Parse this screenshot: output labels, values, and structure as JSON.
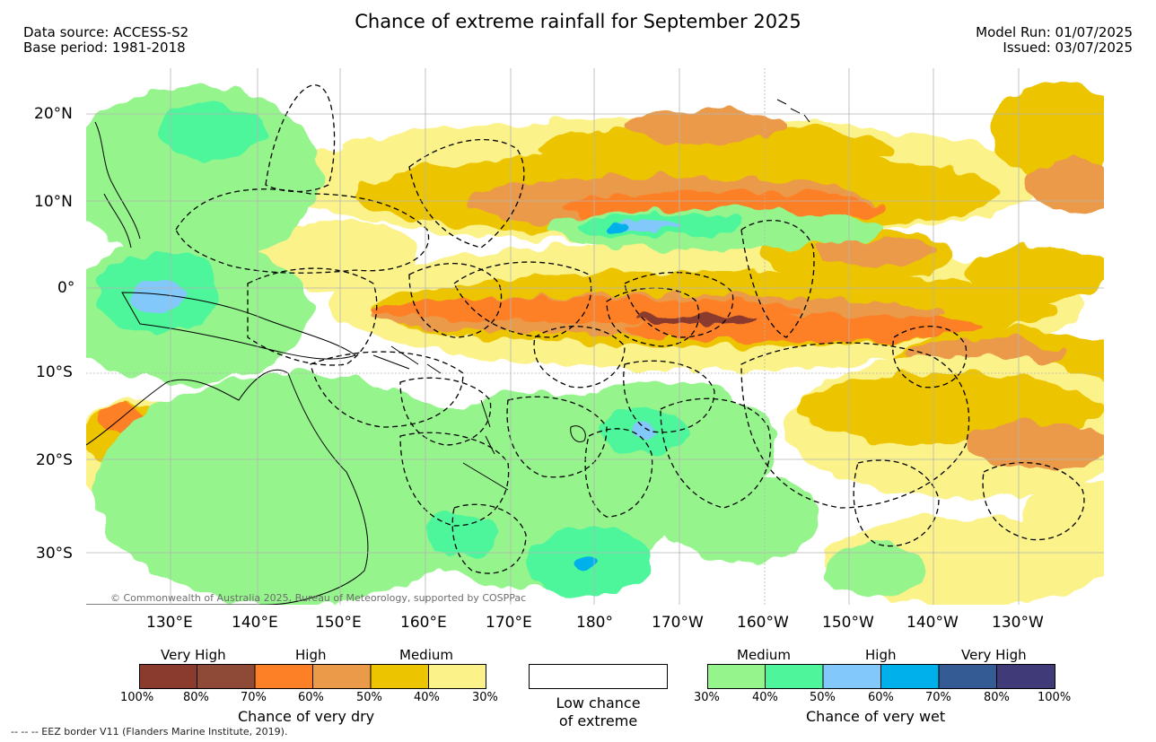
{
  "header": {
    "title": "Chance of extreme rainfall for September 2025",
    "data_source": "Data source: ACCESS-S2",
    "base_period": "Base period: 1981-2018",
    "model_run": "Model Run: 01/07/2025",
    "issued": "Issued: 03/07/2025"
  },
  "map": {
    "lat_labels": [
      "20°N",
      "10°N",
      "0°",
      "10°S",
      "20°S",
      "30°S"
    ],
    "lon_labels": [
      "130°E",
      "140°E",
      "150°E",
      "160°E",
      "170°E",
      "180°",
      "170°W",
      "160°W",
      "150°W",
      "140°W",
      "130°W"
    ],
    "copyright": "© Commonwealth of Australia 2025, Bureau of Meteorology, supported by COSPPac",
    "colors": {
      "dry_very_high_100_80": "#8b3a2e",
      "dry_very_high_80_70": "#8f4a37",
      "dry_high_70_60": "#fd7f26",
      "dry_high_60_50": "#eb9a4a",
      "dry_medium_50_40": "#ecc400",
      "dry_medium_40_30": "#fbf28a",
      "wet_medium_30_40": "#95f58c",
      "wet_medium_40_50": "#4ef59b",
      "wet_high_50_60": "#82c8fa",
      "wet_high_60_70": "#00b0eb",
      "wet_very_high_70_80": "#345b94",
      "wet_very_high_80_100": "#403a78",
      "land_outline": "#000000",
      "eez_border": "#000000",
      "gridline": "#b4b4b4"
    }
  },
  "legend": {
    "dry": {
      "headers": [
        "Very High",
        "High",
        "Medium"
      ],
      "ticks": [
        "100%",
        "80%",
        "70%",
        "60%",
        "50%",
        "40%",
        "30%"
      ],
      "caption": "Chance of very dry"
    },
    "low": {
      "caption_line1": "Low chance",
      "caption_line2": "of extreme"
    },
    "wet": {
      "headers": [
        "Medium",
        "High",
        "Very High"
      ],
      "ticks": [
        "30%",
        "40%",
        "50%",
        "60%",
        "70%",
        "80%",
        "100%"
      ],
      "caption": "Chance of very wet"
    }
  },
  "footer": {
    "eez_note": "--  --  -- EEZ border V11 (Flanders Marine Institute, 2019)."
  }
}
